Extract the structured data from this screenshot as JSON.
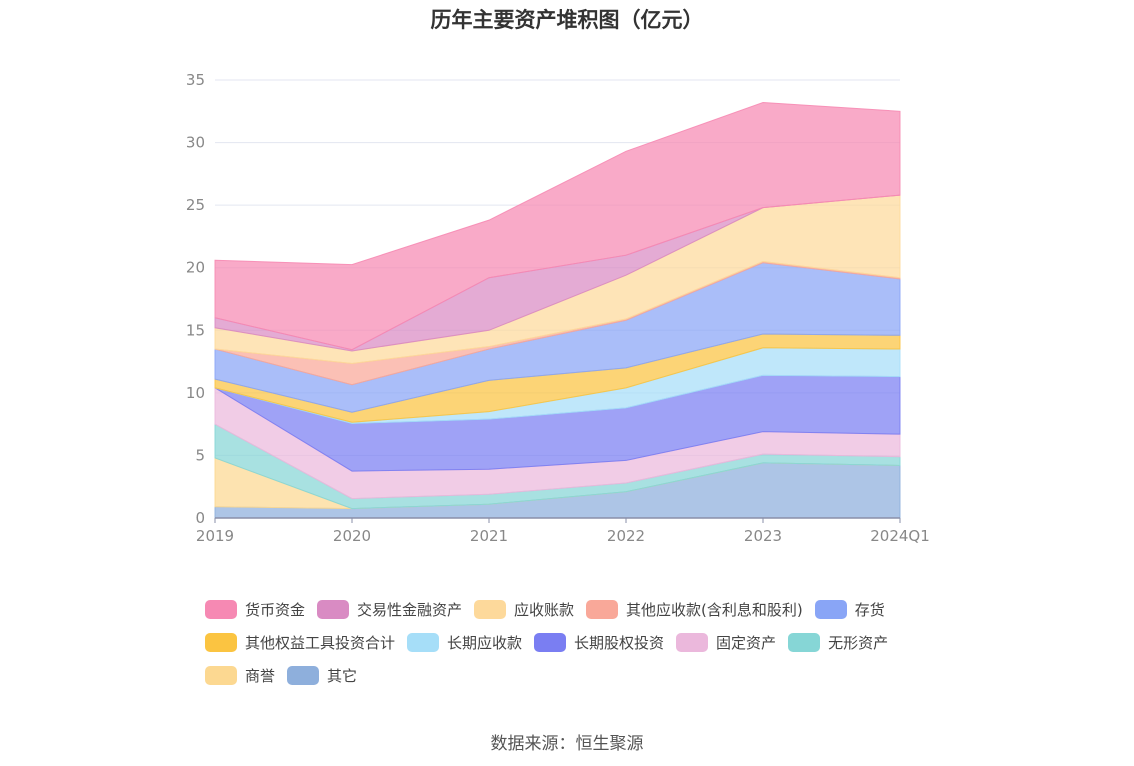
{
  "chart_data": {
    "type": "area",
    "stacked": true,
    "title": "历年主要资产堆积图（亿元）",
    "categories": [
      "2019",
      "2020",
      "2021",
      "2022",
      "2023",
      "2024Q1"
    ],
    "ylim": [
      0,
      35
    ],
    "yticks": [
      0,
      5,
      10,
      15,
      20,
      25,
      30,
      35
    ],
    "grid": true,
    "legend_position": "bottom",
    "series": [
      {
        "name": "其它",
        "color": "#8eafdc",
        "values": [
          0.9,
          0.75,
          1.1,
          2.1,
          4.4,
          4.2
        ]
      },
      {
        "name": "商誉",
        "color": "#fcd891",
        "values": [
          3.9,
          0,
          0,
          0,
          0,
          0
        ]
      },
      {
        "name": "无形资产",
        "color": "#86d6d6",
        "values": [
          2.7,
          0.8,
          0.8,
          0.7,
          0.7,
          0.7
        ]
      },
      {
        "name": "固定资产",
        "color": "#ebb8dc",
        "values": [
          2.9,
          2.2,
          2.0,
          1.8,
          1.8,
          1.8
        ]
      },
      {
        "name": "长期股权投资",
        "color": "#7a7ef2",
        "values": [
          0,
          3.8,
          4.0,
          4.2,
          4.5,
          4.6
        ]
      },
      {
        "name": "长期应收款",
        "color": "#a6def8",
        "values": [
          0,
          0.1,
          0.6,
          1.6,
          2.2,
          2.2
        ]
      },
      {
        "name": "其他权益工具投资合计",
        "color": "#fbc441",
        "values": [
          0.7,
          0.8,
          2.5,
          1.6,
          1.1,
          1.1
        ]
      },
      {
        "name": "存货",
        "color": "#89a5f6",
        "values": [
          2.4,
          2.2,
          2.5,
          3.8,
          5.7,
          4.5
        ]
      },
      {
        "name": "其他应收款(含利息和股利)",
        "color": "#f9a899",
        "values": [
          0,
          1.7,
          0.2,
          0.1,
          0.1,
          0.1
        ]
      },
      {
        "name": "应收账款",
        "color": "#fdd99b",
        "values": [
          1.7,
          1.0,
          1.3,
          3.5,
          4.3,
          6.6
        ]
      },
      {
        "name": "交易性金融资产",
        "color": "#d98bc3",
        "values": [
          0.8,
          0.1,
          4.2,
          1.6,
          0,
          0
        ]
      },
      {
        "name": "货币资金",
        "color": "#f689b3",
        "values": [
          4.6,
          6.8,
          4.6,
          8.3,
          8.4,
          6.7
        ]
      }
    ],
    "legend_order": [
      "货币资金",
      "交易性金融资产",
      "应收账款",
      "其他应收款(含利息和股利)",
      "存货",
      "其他权益工具投资合计",
      "长期应收款",
      "长期股权投资",
      "固定资产",
      "无形资产",
      "商誉",
      "其它"
    ],
    "source": "数据来源：恒生聚源"
  }
}
